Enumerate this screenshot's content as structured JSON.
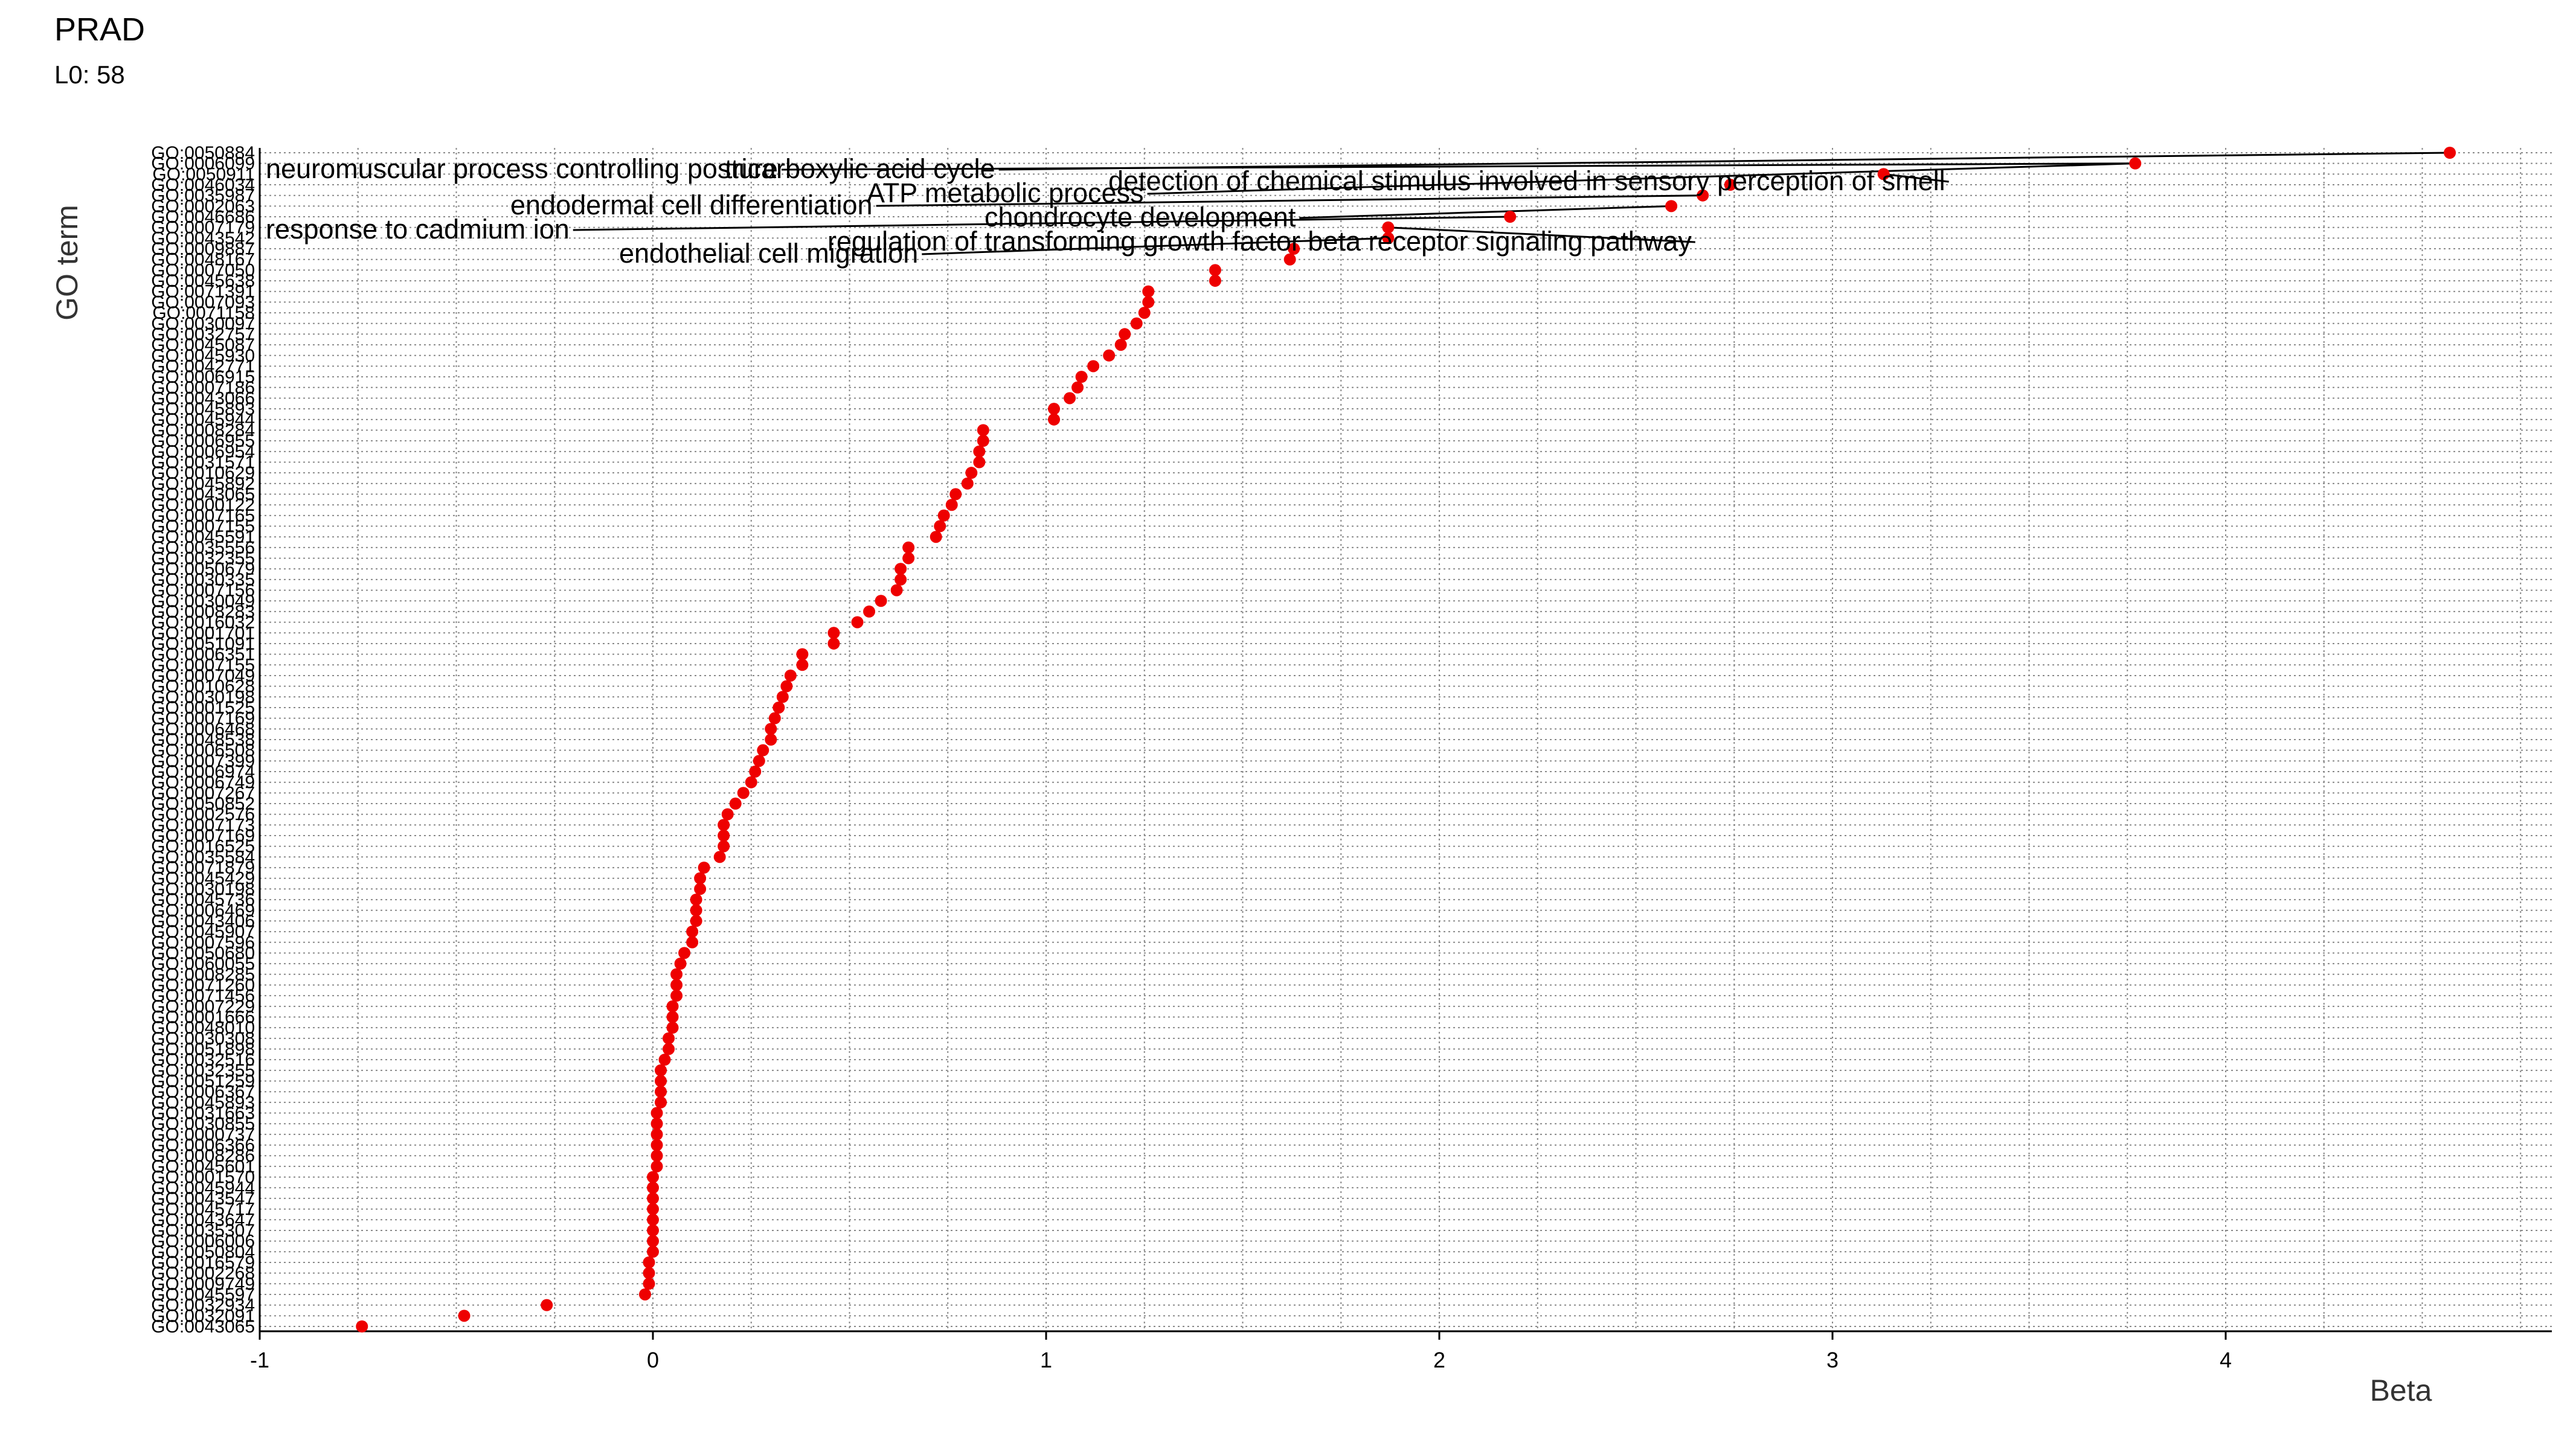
{
  "chart_data": {
    "type": "scatter",
    "title": "PRAD",
    "subtitle": "L0: 58",
    "xlabel": "Beta",
    "ylabel": "GO term",
    "xlim": [
      -1,
      4.85
    ],
    "xticks": [
      -1,
      0,
      1,
      2,
      3,
      4
    ],
    "grid": true,
    "legend": "none",
    "point_color": "#ee0000",
    "points": [
      {
        "term": "GO:0050884",
        "beta": 4.57
      },
      {
        "term": "GO:0006099",
        "beta": 3.77
      },
      {
        "term": "GO:0050911",
        "beta": 3.13
      },
      {
        "term": "GO:0046034",
        "beta": 2.74
      },
      {
        "term": "GO:0035987",
        "beta": 2.67
      },
      {
        "term": "GO:0002063",
        "beta": 2.59
      },
      {
        "term": "GO:0046686",
        "beta": 2.18
      },
      {
        "term": "GO:0007179",
        "beta": 1.87
      },
      {
        "term": "GO:0043542",
        "beta": 1.87
      },
      {
        "term": "GO:0009887",
        "beta": 1.63
      },
      {
        "term": "GO:0048167",
        "beta": 1.62
      },
      {
        "term": "GO:0007050",
        "beta": 1.43
      },
      {
        "term": "GO:0045638",
        "beta": 1.43
      },
      {
        "term": "GO:0071391",
        "beta": 1.26
      },
      {
        "term": "GO:0007093",
        "beta": 1.26
      },
      {
        "term": "GO:0071158",
        "beta": 1.25
      },
      {
        "term": "GO:0030097",
        "beta": 1.23
      },
      {
        "term": "GO:0032757",
        "beta": 1.2
      },
      {
        "term": "GO:0045087",
        "beta": 1.19
      },
      {
        "term": "GO:0045930",
        "beta": 1.16
      },
      {
        "term": "GO:0042771",
        "beta": 1.12
      },
      {
        "term": "GO:0006915",
        "beta": 1.09
      },
      {
        "term": "GO:0007186",
        "beta": 1.08
      },
      {
        "term": "GO:0043066",
        "beta": 1.06
      },
      {
        "term": "GO:0045893",
        "beta": 1.02
      },
      {
        "term": "GO:0045944",
        "beta": 1.02
      },
      {
        "term": "GO:0008284",
        "beta": 0.84
      },
      {
        "term": "GO:0006955",
        "beta": 0.84
      },
      {
        "term": "GO:0006954",
        "beta": 0.83
      },
      {
        "term": "GO:0031571",
        "beta": 0.83
      },
      {
        "term": "GO:0010629",
        "beta": 0.81
      },
      {
        "term": "GO:0045892",
        "beta": 0.8
      },
      {
        "term": "GO:0043065",
        "beta": 0.77
      },
      {
        "term": "GO:0000122",
        "beta": 0.76
      },
      {
        "term": "GO:0007165",
        "beta": 0.74
      },
      {
        "term": "GO:0007155",
        "beta": 0.73
      },
      {
        "term": "GO:0045591",
        "beta": 0.72
      },
      {
        "term": "GO:0035556",
        "beta": 0.65
      },
      {
        "term": "GO:0032355",
        "beta": 0.65
      },
      {
        "term": "GO:0050679",
        "beta": 0.63
      },
      {
        "term": "GO:0030335",
        "beta": 0.63
      },
      {
        "term": "GO:0007156",
        "beta": 0.62
      },
      {
        "term": "GO:0030049",
        "beta": 0.58
      },
      {
        "term": "GO:0008283",
        "beta": 0.55
      },
      {
        "term": "GO:0016032",
        "beta": 0.52
      },
      {
        "term": "GO:0001701",
        "beta": 0.46
      },
      {
        "term": "GO:0051091",
        "beta": 0.46
      },
      {
        "term": "GO:0006351",
        "beta": 0.38
      },
      {
        "term": "GO:0007155",
        "beta": 0.38
      },
      {
        "term": "GO:0007049",
        "beta": 0.35
      },
      {
        "term": "GO:0010628",
        "beta": 0.34
      },
      {
        "term": "GO:0030198",
        "beta": 0.33
      },
      {
        "term": "GO:0001525",
        "beta": 0.32
      },
      {
        "term": "GO:0007169",
        "beta": 0.31
      },
      {
        "term": "GO:0006468",
        "beta": 0.3
      },
      {
        "term": "GO:0048538",
        "beta": 0.3
      },
      {
        "term": "GO:0006508",
        "beta": 0.28
      },
      {
        "term": "GO:0007399",
        "beta": 0.27
      },
      {
        "term": "GO:0006974",
        "beta": 0.26
      },
      {
        "term": "GO:0006749",
        "beta": 0.25
      },
      {
        "term": "GO:0007267",
        "beta": 0.23
      },
      {
        "term": "GO:0050852",
        "beta": 0.21
      },
      {
        "term": "GO:0002576",
        "beta": 0.19
      },
      {
        "term": "GO:0007173",
        "beta": 0.18
      },
      {
        "term": "GO:0007169",
        "beta": 0.18
      },
      {
        "term": "GO:0016525",
        "beta": 0.18
      },
      {
        "term": "GO:0035584",
        "beta": 0.17
      },
      {
        "term": "GO:0071879",
        "beta": 0.13
      },
      {
        "term": "GO:0045429",
        "beta": 0.12
      },
      {
        "term": "GO:0030198",
        "beta": 0.12
      },
      {
        "term": "GO:0045736",
        "beta": 0.11
      },
      {
        "term": "GO:0006469",
        "beta": 0.11
      },
      {
        "term": "GO:0043406",
        "beta": 0.11
      },
      {
        "term": "GO:0045907",
        "beta": 0.1
      },
      {
        "term": "GO:0007596",
        "beta": 0.1
      },
      {
        "term": "GO:0050680",
        "beta": 0.08
      },
      {
        "term": "GO:0060055",
        "beta": 0.07
      },
      {
        "term": "GO:0008285",
        "beta": 0.06
      },
      {
        "term": "GO:0071260",
        "beta": 0.06
      },
      {
        "term": "GO:0071456",
        "beta": 0.06
      },
      {
        "term": "GO:0007229",
        "beta": 0.05
      },
      {
        "term": "GO:0001666",
        "beta": 0.05
      },
      {
        "term": "GO:0048010",
        "beta": 0.05
      },
      {
        "term": "GO:0030308",
        "beta": 0.04
      },
      {
        "term": "GO:0051898",
        "beta": 0.04
      },
      {
        "term": "GO:0032516",
        "beta": 0.03
      },
      {
        "term": "GO:0032355",
        "beta": 0.02
      },
      {
        "term": "GO:0051259",
        "beta": 0.02
      },
      {
        "term": "GO:0006367",
        "beta": 0.02
      },
      {
        "term": "GO:0045893",
        "beta": 0.02
      },
      {
        "term": "GO:0031663",
        "beta": 0.01
      },
      {
        "term": "GO:0030855",
        "beta": 0.01
      },
      {
        "term": "GO:0000737",
        "beta": 0.01
      },
      {
        "term": "GO:0006366",
        "beta": 0.01
      },
      {
        "term": "GO:0008286",
        "beta": 0.01
      },
      {
        "term": "GO:0045601",
        "beta": 0.01
      },
      {
        "term": "GO:0001570",
        "beta": 0.0
      },
      {
        "term": "GO:0045944",
        "beta": 0.0
      },
      {
        "term": "GO:0043547",
        "beta": 0.0
      },
      {
        "term": "GO:0045717",
        "beta": 0.0
      },
      {
        "term": "GO:0043647",
        "beta": 0.0
      },
      {
        "term": "GO:0035307",
        "beta": 0.0
      },
      {
        "term": "GO:0006006",
        "beta": 0.0
      },
      {
        "term": "GO:0050804",
        "beta": 0.0
      },
      {
        "term": "GO:0016579",
        "beta": -0.01
      },
      {
        "term": "GO:0002268",
        "beta": -0.01
      },
      {
        "term": "GO:0009749",
        "beta": -0.01
      },
      {
        "term": "GO:0045597",
        "beta": -0.02
      },
      {
        "term": "GO:0032934",
        "beta": -0.27
      },
      {
        "term": "GO:0032091",
        "beta": -0.48
      },
      {
        "term": "GO:0043065",
        "beta": -0.74
      }
    ],
    "annotations": [
      {
        "text": "neuromuscular process controlling posture",
        "point": 1
      },
      {
        "text": "tricarboxylic acid cycle",
        "point": 0
      },
      {
        "text": "detection of chemical stimulus involved in sensory perception of smell",
        "point": 2
      },
      {
        "text": "ATP metabolic process",
        "point": 1
      },
      {
        "text": "endodermal cell differentiation",
        "point": 4
      },
      {
        "text": "chondrocyte development",
        "point": 5
      },
      {
        "text": "response to cadmium ion",
        "point": 6
      },
      {
        "text": "regulation of transforming growth factor beta receptor signaling pathway",
        "point": 7
      },
      {
        "text": "endothelial cell migration",
        "point": 8
      }
    ]
  }
}
